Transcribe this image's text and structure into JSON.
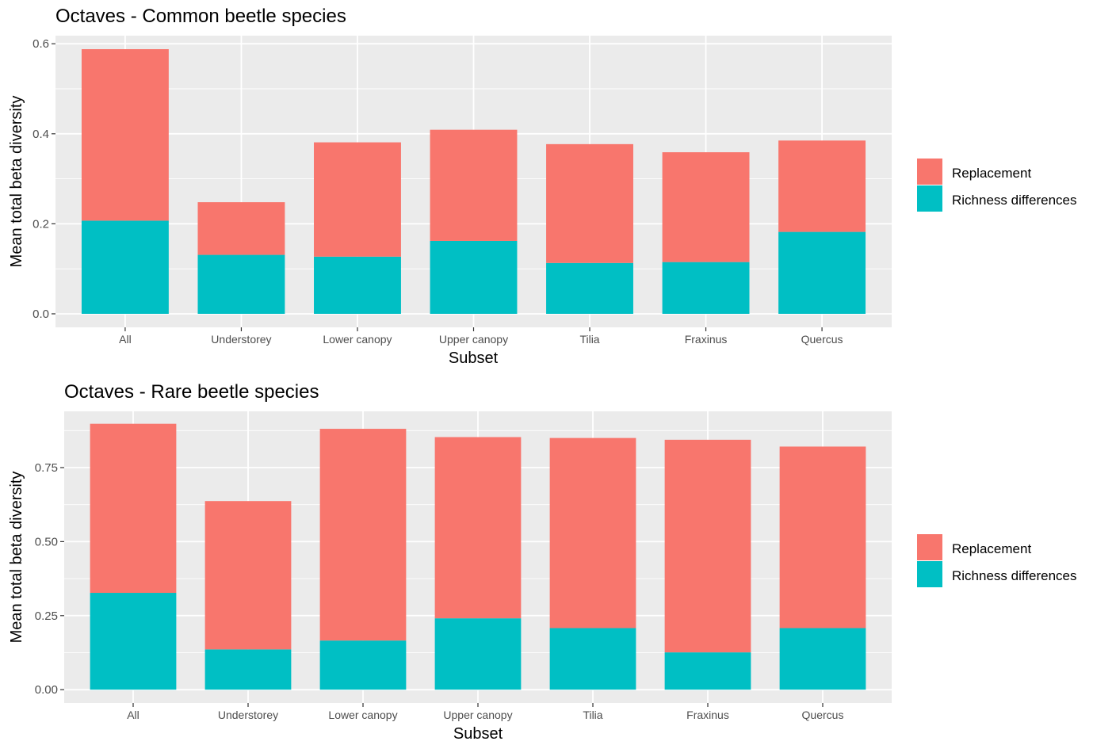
{
  "chart_data": [
    {
      "type": "bar",
      "stacked": true,
      "title": "Octaves - Common beetle species",
      "xlabel": "Subset",
      "ylabel": "Mean total beta diversity",
      "categories": [
        "All",
        "Understorey",
        "Lower canopy",
        "Upper canopy",
        "Tilia",
        "Fraxinus",
        "Quercus"
      ],
      "series": [
        {
          "name": "Richness differences",
          "color": "#00BFC4",
          "values": [
            0.207,
            0.131,
            0.127,
            0.162,
            0.113,
            0.115,
            0.182
          ]
        },
        {
          "name": "Replacement",
          "color": "#F8766D",
          "values": [
            0.381,
            0.117,
            0.254,
            0.247,
            0.264,
            0.244,
            0.203
          ]
        }
      ],
      "yticks": [
        0.0,
        0.2,
        0.4,
        0.6
      ],
      "ytick_labels": [
        "0.0",
        "0.2",
        "0.4",
        "0.6"
      ],
      "ylim": [
        -0.03,
        0.618
      ],
      "grid": true,
      "legend": {
        "placement": "right",
        "entries": [
          {
            "label": "Replacement",
            "color": "#F8766D"
          },
          {
            "label": "Richness differences",
            "color": "#00BFC4"
          }
        ]
      }
    },
    {
      "type": "bar",
      "stacked": true,
      "title": "Octaves - Rare beetle species",
      "xlabel": "Subset",
      "ylabel": "Mean total beta diversity",
      "categories": [
        "All",
        "Understorey",
        "Lower canopy",
        "Upper canopy",
        "Tilia",
        "Fraxinus",
        "Quercus"
      ],
      "series": [
        {
          "name": "Richness differences",
          "color": "#00BFC4",
          "values": [
            0.327,
            0.136,
            0.166,
            0.241,
            0.208,
            0.126,
            0.208
          ]
        },
        {
          "name": "Replacement",
          "color": "#F8766D",
          "values": [
            0.571,
            0.501,
            0.715,
            0.612,
            0.642,
            0.718,
            0.613
          ]
        }
      ],
      "yticks": [
        0.0,
        0.25,
        0.5,
        0.75
      ],
      "ytick_labels": [
        "0.00",
        "0.25",
        "0.50",
        "0.75"
      ],
      "ylim": [
        -0.045,
        0.94
      ],
      "grid": true,
      "legend": {
        "placement": "right",
        "entries": [
          {
            "label": "Replacement",
            "color": "#F8766D"
          },
          {
            "label": "Richness differences",
            "color": "#00BFC4"
          }
        ]
      }
    }
  ]
}
